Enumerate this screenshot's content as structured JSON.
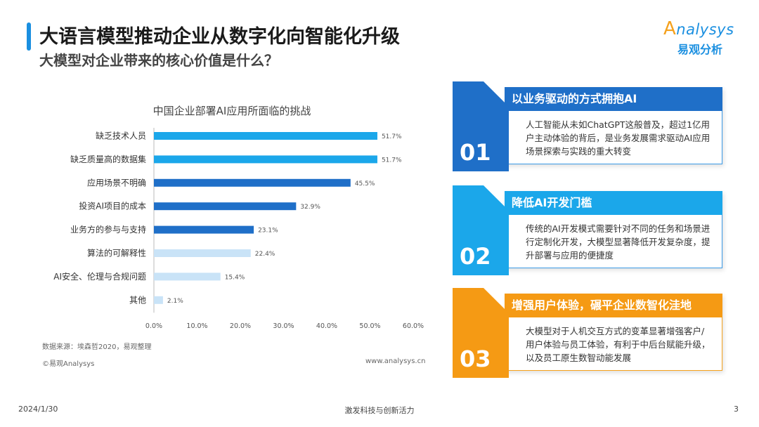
{
  "header": {
    "title": "大语言模型推动企业从数字化向智能化升级",
    "subtitle": "大模型对企业带来的核心价值是什么？"
  },
  "logo": {
    "en_cap": "A",
    "en_rest": "nalysys",
    "cn": "易观分析"
  },
  "chart_data": {
    "type": "bar",
    "orientation": "horizontal",
    "title": "中国企业部署AI应用所面临的挑战",
    "categories": [
      "缺乏技术人员",
      "缺乏质量高的数据集",
      "应用场景不明确",
      "投资AI项目的成本",
      "业务方的参与与支持",
      "算法的可解释性",
      "AI安全、伦理与合规问题",
      "其他"
    ],
    "values": [
      51.7,
      51.7,
      45.5,
      32.9,
      23.1,
      22.4,
      15.4,
      2.1
    ],
    "value_labels": [
      "51.7%",
      "51.7%",
      "45.5%",
      "32.9%",
      "23.1%",
      "22.4%",
      "15.4%",
      "2.1%"
    ],
    "bar_colors": [
      "#1ba7ea",
      "#1ba7ea",
      "#1f6fc8",
      "#1f6fc8",
      "#1f6fc8",
      "#c9e3f7",
      "#c9e3f7",
      "#c9e3f7"
    ],
    "xlim": [
      0,
      60
    ],
    "xticks": [
      "0.0%",
      "10.0%",
      "20.0%",
      "30.0%",
      "40.0%",
      "50.0%",
      "60.0%"
    ],
    "xlabel": "",
    "ylabel": "",
    "grid": false
  },
  "chart_notes": {
    "source": "数据来源：埃森哲2020，易观整理",
    "copyright": "©易观Analysys",
    "website": "www.analysys.cn"
  },
  "cards": [
    {
      "num": "01",
      "heading": "以业务驱动的方式拥抱AI",
      "text": "人工智能从未如ChatGPT这般普及，超过1亿用户主动体验的背后，是业务发展需求驱动AI应用场景探索与实践的重大转变"
    },
    {
      "num": "02",
      "heading": "降低AI开发门槛",
      "text": "传统的AI开发模式需要针对不同的任务和场景进行定制化开发，大模型显著降低开发复杂度，提升部署与应用的便捷度"
    },
    {
      "num": "03",
      "heading": "增强用户体验，碾平企业数智化洼地",
      "text": "大模型对于人机交互方式的变革显著增强客户/用户体验与员工体验，有利于中后台赋能升级，以及员工原生数智动能发展"
    }
  ],
  "footer": {
    "date": "2024/1/30",
    "center": "激发科技与创新活力",
    "page": "3"
  }
}
